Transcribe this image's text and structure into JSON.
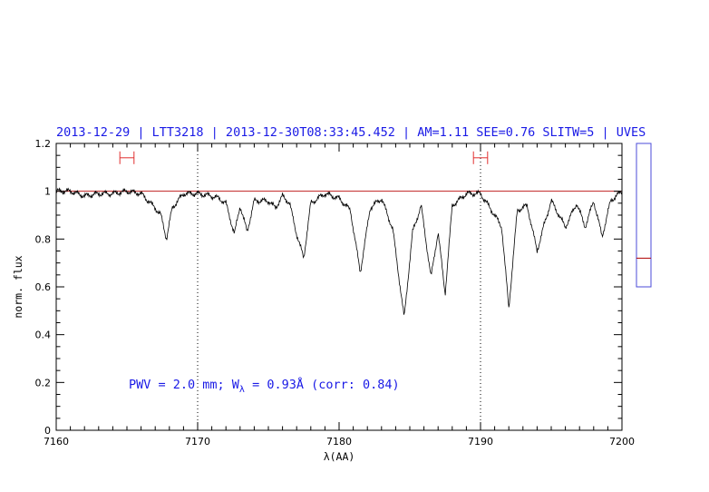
{
  "chart_data": {
    "type": "line",
    "title": "2013-12-29 | LTT3218 | 2013-12-30T08:33:45.452 | AM=1.11  SEE=0.76  SLITW=5 | UVES",
    "xlabel": "λ(AA)",
    "ylabel": "norm. flux",
    "xlim": [
      7160,
      7200
    ],
    "ylim": [
      0,
      1.2
    ],
    "xticks": [
      "7160",
      "7170",
      "7180",
      "7190",
      "7200"
    ],
    "yticks": [
      "0",
      "0.2",
      "0.4",
      "0.6",
      "0.8",
      "1",
      "1.2"
    ],
    "grid": false,
    "vlines": [
      7170,
      7190
    ],
    "continuum_level": 1.0,
    "fit_ranges": [
      [
        7164.5,
        7165.5
      ],
      [
        7189.5,
        7190.5
      ]
    ],
    "annotation": {
      "prefix": "PWV = 2.0 mm; W",
      "subscript": "λ",
      "suffix": " = 0.93Å (corr: 0.84)"
    },
    "side_gauge": {
      "range": [
        0.6,
        1.2
      ],
      "value": 0.72
    },
    "series": [
      {
        "x": [
          7160,
          7161,
          7162,
          7163,
          7164,
          7165,
          7166,
          7167,
          7167.4,
          7167.8,
          7168.2,
          7169,
          7170,
          7171,
          7171.5,
          7172,
          7172.6,
          7173,
          7173.5,
          7174,
          7175,
          7175.5,
          7176,
          7176.5,
          7177,
          7177.5,
          7178,
          7179,
          7180,
          7180.8,
          7181.5,
          7182.2,
          7183,
          7183.8,
          7184.6,
          7185.2,
          7185.8,
          7186.5,
          7187.0,
          7187.5,
          7188.0,
          7189,
          7190,
          7191.0,
          7191.5,
          7192.0,
          7192.6,
          7193.3,
          7194.0,
          7194.5,
          7195.0,
          7196.0,
          7196.8,
          7197.4,
          7198.0,
          7198.6,
          7199.2,
          7200
        ],
        "y": [
          1.0,
          1.0,
          0.98,
          0.99,
          0.99,
          1.0,
          0.99,
          0.93,
          0.9,
          0.8,
          0.93,
          0.99,
          0.99,
          0.98,
          0.97,
          0.95,
          0.82,
          0.94,
          0.83,
          0.96,
          0.96,
          0.93,
          0.98,
          0.95,
          0.82,
          0.72,
          0.95,
          0.99,
          0.97,
          0.92,
          0.66,
          0.93,
          0.97,
          0.84,
          0.47,
          0.83,
          0.94,
          0.64,
          0.83,
          0.57,
          0.94,
          0.99,
          0.99,
          0.9,
          0.85,
          0.51,
          0.92,
          0.94,
          0.75,
          0.86,
          0.96,
          0.85,
          0.95,
          0.85,
          0.96,
          0.81,
          0.96,
          1.0
        ]
      }
    ]
  }
}
